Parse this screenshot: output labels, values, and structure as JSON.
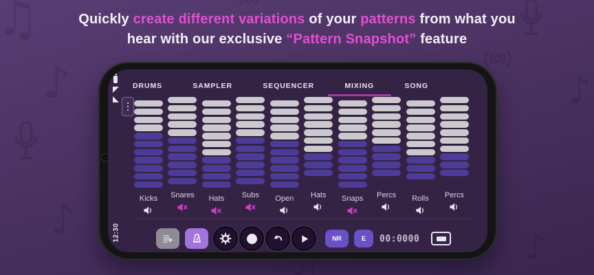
{
  "headline": {
    "lines": [
      [
        {
          "text": "Quickly ",
          "accent": false
        },
        {
          "text": "create different variations",
          "accent": true
        },
        {
          "text": " of your ",
          "accent": false
        },
        {
          "text": "patterns",
          "accent": true
        },
        {
          "text": " from what you",
          "accent": false
        }
      ],
      [
        {
          "text": "hear with our exclusive ",
          "accent": false
        },
        {
          "text": "“Pattern Snapshot”",
          "accent": true
        },
        {
          "text": " feature",
          "accent": false
        }
      ]
    ]
  },
  "phone": {
    "status_bar": {
      "clock": "12:30",
      "icons": [
        "battery-icon",
        "wifi-icon",
        "signal-icon"
      ],
      "camera": "punch-hole-camera"
    },
    "tabs": [
      {
        "label": "DRUMS",
        "active": false
      },
      {
        "label": "SAMPLER",
        "active": false
      },
      {
        "label": "SEQUENCER",
        "active": false
      },
      {
        "label": "MIXING",
        "active": true
      },
      {
        "label": "SONG",
        "active": false
      }
    ],
    "mixer": {
      "options_button_icon": "kebab-menu-icon",
      "channels": [
        {
          "label": "Kicks",
          "muted": false,
          "inactive_segments": 4,
          "active_segments": 7
        },
        {
          "label": "Snares",
          "muted": true,
          "inactive_segments": 5,
          "active_segments": 6
        },
        {
          "label": "Hats",
          "muted": true,
          "inactive_segments": 7,
          "active_segments": 4
        },
        {
          "label": "Subs",
          "muted": true,
          "inactive_segments": 5,
          "active_segments": 6
        },
        {
          "label": "Open",
          "muted": false,
          "inactive_segments": 5,
          "active_segments": 6
        },
        {
          "label": "Hats",
          "muted": false,
          "inactive_segments": 7,
          "active_segments": 3
        },
        {
          "label": "Snaps",
          "muted": true,
          "inactive_segments": 5,
          "active_segments": 6
        },
        {
          "label": "Percs",
          "muted": false,
          "inactive_segments": 6,
          "active_segments": 4
        },
        {
          "label": "Rolls",
          "muted": false,
          "inactive_segments": 7,
          "active_segments": 3
        },
        {
          "label": "Percs",
          "muted": false,
          "inactive_segments": 7,
          "active_segments": 3
        }
      ]
    },
    "toolbar": {
      "buttons": [
        {
          "name": "pattern-list-button",
          "icon": "playlist-play-icon"
        },
        {
          "name": "metronome-button",
          "icon": "metronome-icon"
        },
        {
          "name": "settings-button",
          "icon": "gear-icon"
        },
        {
          "name": "record-button",
          "icon": "record-dot-icon"
        },
        {
          "name": "undo-button",
          "icon": "undo-arrow-icon"
        },
        {
          "name": "play-button",
          "icon": "play-icon"
        }
      ],
      "nr_badge": "NR",
      "e_badge": "E",
      "time_counter": "00:0000",
      "display_icon": "display-icon"
    }
  },
  "colors": {
    "accent_pink": "#e14fd2",
    "tab_underline": "#ab36a4",
    "fader_active": "#4c3c98",
    "fader_inactive": "#cbc8ce",
    "mute_pink": "#cf3ec9",
    "badge_purple": "#6a51c5",
    "metronome_button": "#a373de",
    "screen_bg": "#352345"
  }
}
